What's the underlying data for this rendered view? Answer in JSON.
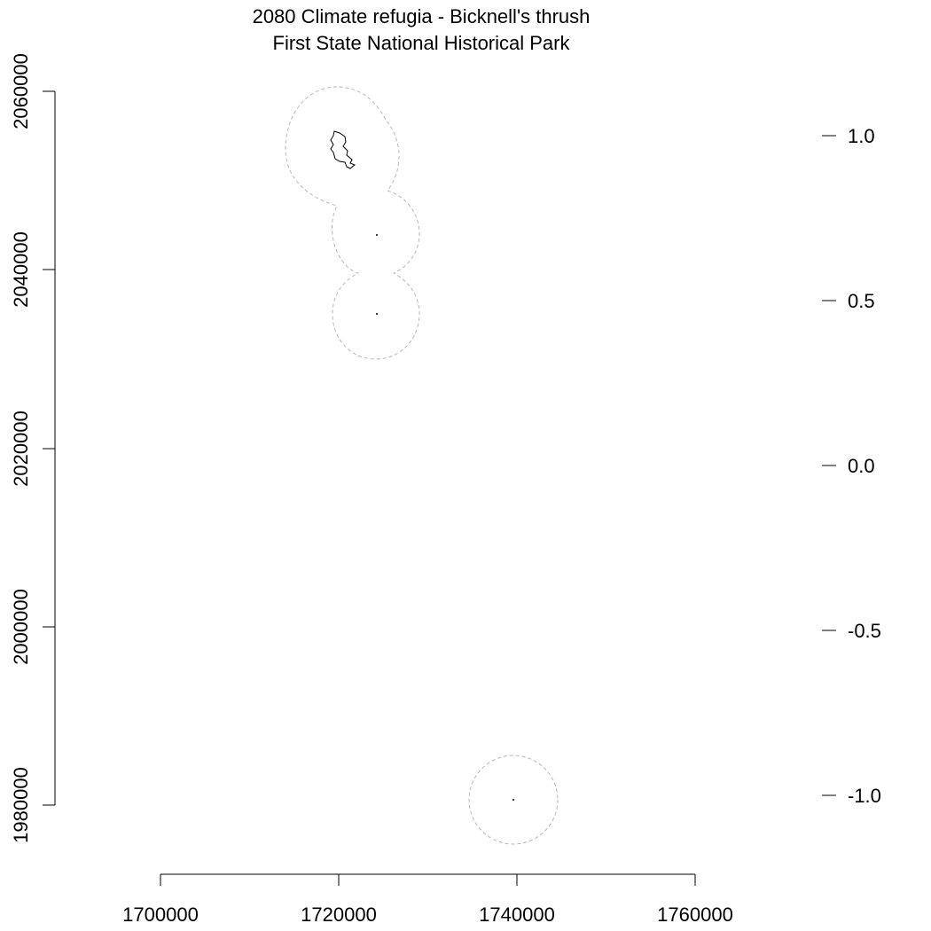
{
  "title": {
    "line1": "2080 Climate refugia - Bicknell's thrush",
    "line2": "First State National Historical Park"
  },
  "x_axis": {
    "ticks": [
      1700000,
      1720000,
      1740000,
      1760000
    ],
    "labels": [
      "1700000",
      "1720000",
      "1740000",
      "1760000"
    ]
  },
  "y_axis": {
    "ticks": [
      1980000,
      2000000,
      2020000,
      2040000,
      2060000
    ],
    "labels": [
      "1980000",
      "2000000",
      "2020000",
      "2040000",
      "2060000"
    ]
  },
  "legend_axis": {
    "ticks": [
      1.0,
      0.5,
      0.0,
      -0.5,
      -1.0
    ],
    "labels": [
      "1.0",
      "0.5",
      "0.0",
      "-0.5",
      "-1.0"
    ]
  },
  "map_data": {
    "refugia_points": [
      {
        "x": 1724200,
        "y": 2044000
      },
      {
        "x": 1724200,
        "y": 2035000
      },
      {
        "x": 1739600,
        "y": 1980500
      }
    ],
    "refugia_polygon_center": {
      "x": 1720000,
      "y": 2054000
    },
    "buffer_color": "#b8b8b8",
    "refugia_color": "#000000"
  }
}
